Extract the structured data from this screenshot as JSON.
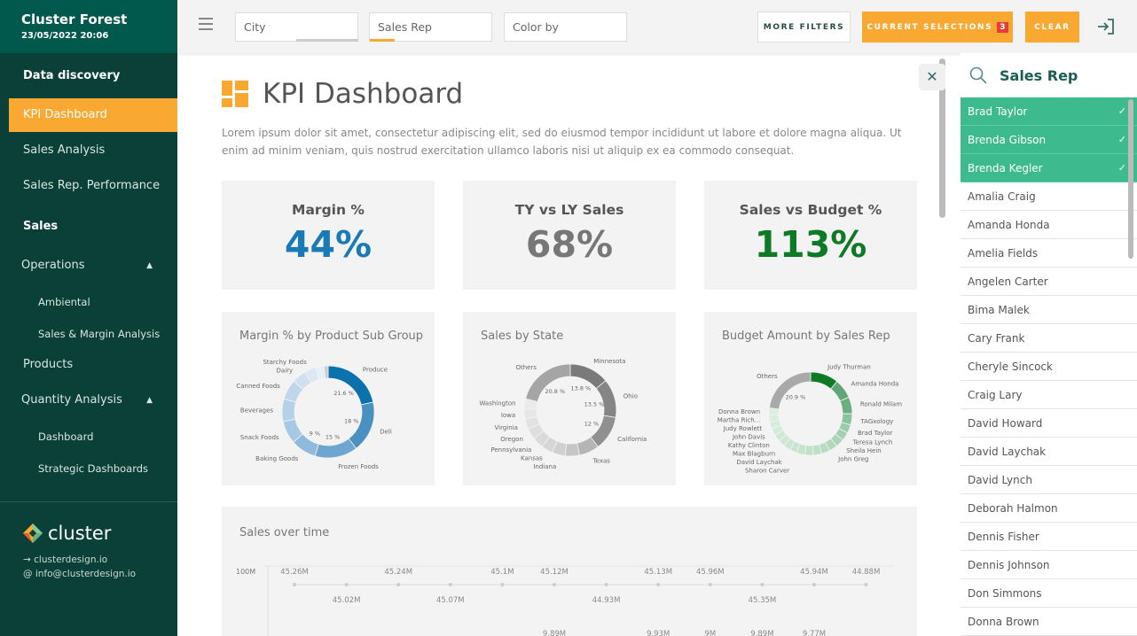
{
  "app": {
    "title": "Cluster Forest",
    "datetime": "23/05/2022 20:06"
  },
  "sidebar": {
    "items": [
      {
        "label": "Data discovery",
        "type": "section"
      },
      {
        "label": "KPI Dashboard",
        "type": "item",
        "active": true
      },
      {
        "label": "Sales Analysis",
        "type": "item"
      },
      {
        "label": "Sales Rep. Performance",
        "type": "item"
      },
      {
        "label": "Sales",
        "type": "section"
      },
      {
        "label": "Operations",
        "type": "group",
        "chevron": "chevron-up-icon"
      },
      {
        "label": "Ambiental",
        "type": "sub"
      },
      {
        "label": "Sales & Margin Analysis",
        "type": "sub"
      },
      {
        "label": "Products",
        "type": "item"
      },
      {
        "label": "Quantity Analysis",
        "type": "group",
        "chevron": "chevron-up-icon"
      },
      {
        "label": "Dashboard",
        "type": "sub"
      },
      {
        "label": "Strategic Dashboards",
        "type": "sub"
      }
    ],
    "logo": "cluster",
    "website": "→ clusterdesign.io",
    "email": "@ info@clusterdesign.io"
  },
  "topbar": {
    "filters": [
      {
        "placeholder": "City"
      },
      {
        "placeholder": "Sales Rep"
      },
      {
        "placeholder": "Color by"
      }
    ],
    "more_filters": "MORE FILTERS",
    "current_selections": "CURRENT SELECTIONS",
    "selections_count": "3",
    "clear": "CLEAR"
  },
  "colors": {
    "accent": "#f9a832",
    "sidebar": "#0a4037",
    "header": "#00594c",
    "selected": "#3dbb8f",
    "blue": "#1a7ab8",
    "green": "#0f7a26"
  },
  "page": {
    "title": "KPI Dashboard",
    "description": "Lorem ipsum dolor sit amet, consectetur adipiscing elit, sed do eiusmod tempor incididunt ut labore et dolore magna aliqua. Ut enim ad minim veniam, quis nostrud exercitation ullamco laboris nisi ut aliquip ex ea commodo consequat."
  },
  "kpis": [
    {
      "title": "Margin %",
      "value": "44%",
      "color": "#1a7ab8"
    },
    {
      "title": "TY vs LY Sales",
      "value": "68%",
      "color": "#777777"
    },
    {
      "title": "Sales vs Budget %",
      "value": "113%",
      "color": "#0f7a26"
    }
  ],
  "chart_data": [
    {
      "type": "pie",
      "title": "Margin % by Product Sub Group",
      "segments": [
        {
          "label": "Produce",
          "value": 21.6,
          "data_label": "21.6 %",
          "color": "#0b72ad"
        },
        {
          "label": "Deli",
          "value": 18,
          "data_label": "18 %",
          "color": "#4a90c0"
        },
        {
          "label": "Frozen Foods",
          "value": 15,
          "data_label": "15 %",
          "color": "#6ea6cf"
        },
        {
          "label": "Baking Goods",
          "value": 9,
          "data_label": "9 %",
          "color": "#8fbadb"
        },
        {
          "label": "Snack Foods",
          "value": 8,
          "color": "#a7c8e3"
        },
        {
          "label": "Beverages",
          "value": 8,
          "color": "#b5d1e8"
        },
        {
          "label": "Canned Foods",
          "value": 7,
          "color": "#bfd7eb"
        },
        {
          "label": "Dairy",
          "value": 5,
          "color": "#cfe1f0"
        },
        {
          "label": "Starchy Foods",
          "value": 4,
          "color": "#dbe8f3"
        },
        {
          "label": "",
          "value": 1.5,
          "color": "#e6eff7"
        },
        {
          "label": "",
          "value": 1.5,
          "color": "#e6eff7"
        },
        {
          "label": "",
          "value": 1.4,
          "color": "#cccccc"
        }
      ]
    },
    {
      "type": "pie",
      "title": "Sales by State",
      "segments": [
        {
          "label": "Minnesota",
          "value": 13.8,
          "data_label": "13.8 %",
          "color": "#7a7a7a"
        },
        {
          "label": "Ohio",
          "value": 13.5,
          "data_label": "13.5 %",
          "color": "#858585"
        },
        {
          "label": "California",
          "value": 12,
          "data_label": "12 %",
          "color": "#909090"
        },
        {
          "label": "Texas",
          "value": 7,
          "color": "#b5b5b5"
        },
        {
          "label": "",
          "value": 5,
          "color": "#c6c6c6"
        },
        {
          "label": "Indiana",
          "value": 4.5,
          "color": "#d0d0d0"
        },
        {
          "label": "Kansas",
          "value": 4,
          "color": "#d6d6d6"
        },
        {
          "label": "Pennsylvania",
          "value": 4,
          "color": "#dadada"
        },
        {
          "label": "Oregon",
          "value": 3.8,
          "color": "#dedede"
        },
        {
          "label": "Virginia",
          "value": 3.6,
          "color": "#e2e2e2"
        },
        {
          "label": "Iowa",
          "value": 3.5,
          "color": "#e6e6e6"
        },
        {
          "label": "Washington",
          "value": 3.5,
          "color": "#eaeaea"
        },
        {
          "label": "Others",
          "value": 20.8,
          "data_label": "20.8 %",
          "color": "#a5a5a5"
        }
      ]
    },
    {
      "type": "pie",
      "title": "Budget Amount by Sales Rep",
      "segments": [
        {
          "label": "Judy Thurman",
          "value": 10,
          "color": "#0f7a26"
        },
        {
          "label": "Amanda Honda",
          "value": 7,
          "color": "#5fa678"
        },
        {
          "label": "Ronald Milam",
          "value": 6,
          "color": "#6aae82"
        },
        {
          "label": "TAGxology",
          "value": 4,
          "color": "#8cc29e"
        },
        {
          "label": "Brad Taylor",
          "value": 3,
          "color": "#9ccbab"
        },
        {
          "label": "Teresa Lynch",
          "value": 3,
          "color": "#a5d0b2"
        },
        {
          "label": "Sheila Hein",
          "value": 3,
          "color": "#acd4b8"
        },
        {
          "label": "John Greg",
          "value": 3,
          "color": "#b3d8be"
        },
        {
          "label": "",
          "value": 3,
          "color": "#b9dbc3"
        },
        {
          "label": "",
          "value": 3,
          "color": "#bddec7"
        },
        {
          "label": "",
          "value": 3,
          "color": "#c1e0ca"
        },
        {
          "label": "",
          "value": 3,
          "color": "#c5e2cd"
        },
        {
          "label": "Sharon Carver",
          "value": 2.5,
          "color": "#c8e4d0"
        },
        {
          "label": "David Laychak",
          "value": 2.5,
          "color": "#cbe5d2"
        },
        {
          "label": "Max Blagburn",
          "value": 2.5,
          "color": "#cee7d5"
        },
        {
          "label": "Kathy Clinton",
          "value": 2.5,
          "color": "#d1e8d7"
        },
        {
          "label": "John Davis",
          "value": 2.5,
          "color": "#d4eada"
        },
        {
          "label": "Judy Rowlett",
          "value": 2.5,
          "color": "#d7ebdc"
        },
        {
          "label": "Martha Rich...",
          "value": 2.5,
          "color": "#daeddf"
        },
        {
          "label": "Donna Brown",
          "value": 2.5,
          "color": "#ddeee1"
        },
        {
          "label": "Others",
          "value": 20.9,
          "data_label": "20.9 %",
          "color": "#a9a9a9"
        }
      ]
    },
    {
      "type": "line",
      "title": "Sales over time",
      "y_tick_labels": [
        "100M"
      ],
      "series": [
        {
          "values": [
            45.26,
            45.02,
            45.24,
            45.07,
            45.1,
            45.12,
            44.93,
            45.13,
            45.96,
            45.35,
            45.94,
            44.88
          ],
          "data_labels": [
            "45.26M",
            "45.02M",
            "45.24M",
            "45.07M",
            "45.1M",
            "45.12M",
            "44.93M",
            "45.13M",
            "45.96M",
            "45.35M",
            "45.94M",
            "44.88M"
          ]
        },
        {
          "values": [
            null,
            null,
            null,
            null,
            null,
            9.89,
            null,
            9.93,
            9,
            9.89,
            9.77,
            null
          ],
          "data_labels": [
            "",
            "",
            "",
            "",
            "",
            "9.89M",
            "",
            "9.93M",
            "9M",
            "9.89M",
            "9.77M",
            ""
          ]
        }
      ]
    }
  ],
  "sales_rep_panel": {
    "title": "Sales Rep",
    "items": [
      {
        "name": "Brad Taylor",
        "selected": true
      },
      {
        "name": "Brenda Gibson",
        "selected": true
      },
      {
        "name": "Brenda Kegler",
        "selected": true
      },
      {
        "name": "Amalia Craig"
      },
      {
        "name": "Amanda Honda"
      },
      {
        "name": "Amelia Fields"
      },
      {
        "name": "Angelen Carter"
      },
      {
        "name": "Bima Malek"
      },
      {
        "name": "Cary Frank"
      },
      {
        "name": "Cheryle Sincock"
      },
      {
        "name": "Craig Lary"
      },
      {
        "name": "David Howard"
      },
      {
        "name": "David Laychak"
      },
      {
        "name": "David Lynch"
      },
      {
        "name": "Deborah Halmon"
      },
      {
        "name": "Dennis Fisher"
      },
      {
        "name": "Dennis Johnson"
      },
      {
        "name": "Don Simmons"
      },
      {
        "name": "Donna Brown"
      }
    ]
  }
}
